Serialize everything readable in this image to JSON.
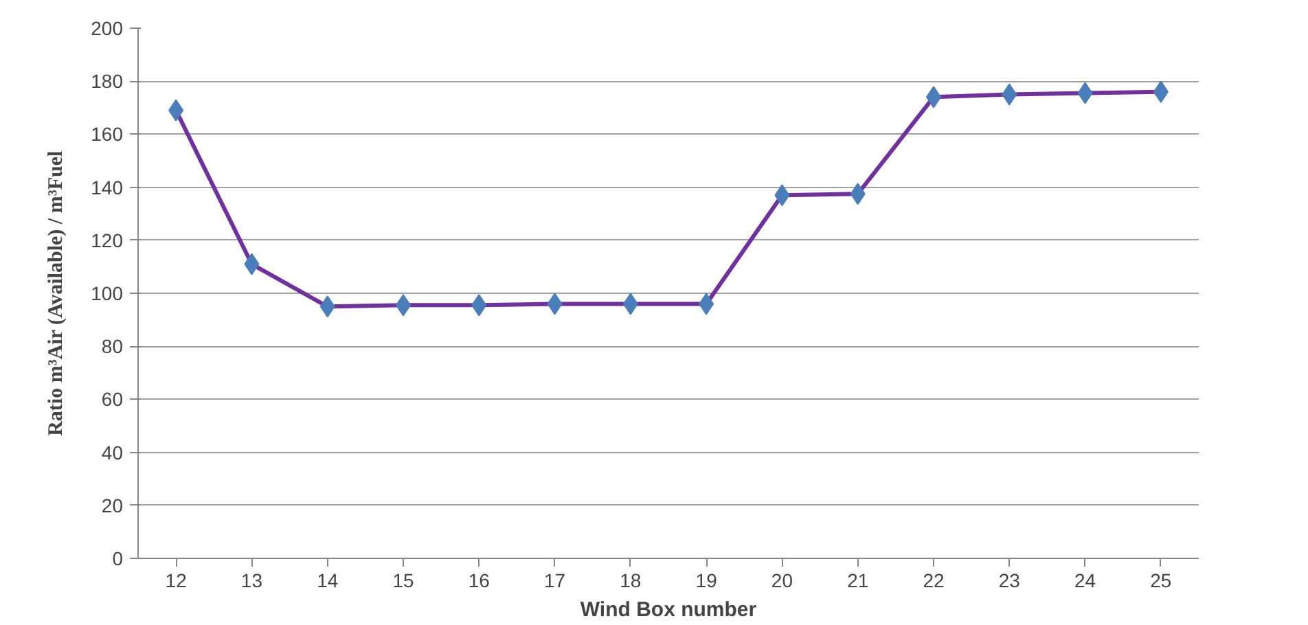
{
  "chart_data": {
    "type": "line",
    "xlabel": "Wind Box number",
    "ylabel": "Ratio m³Air (Available) / m³Fuel",
    "categories": [
      "12",
      "13",
      "14",
      "15",
      "16",
      "17",
      "18",
      "19",
      "20",
      "21",
      "22",
      "23",
      "24",
      "25"
    ],
    "series": [
      {
        "color": "#7030a0",
        "colors": [
          "#4a7ebb",
          "#4a7ebb",
          "#4a7ebb",
          "#4a7ebb",
          "#4a7ebb",
          "#4a7ebb",
          "#4a7ebb",
          "#4a7ebb",
          "#4a7ebb",
          "#4a7ebb",
          "#4a7ebb",
          "#4a7ebb",
          "#4a7ebb",
          "#4a7ebb"
        ],
        "values": [
          169,
          111,
          95,
          95.5,
          95.5,
          96,
          96,
          96,
          137,
          137.5,
          174,
          175,
          175.5,
          176
        ]
      }
    ],
    "ylim": [
      0,
      200
    ],
    "yticks": [
      0,
      20,
      40,
      60,
      80,
      100,
      120,
      140,
      160,
      180,
      200
    ],
    "grid": "y",
    "marker": "diamond",
    "line_style": "solid"
  }
}
